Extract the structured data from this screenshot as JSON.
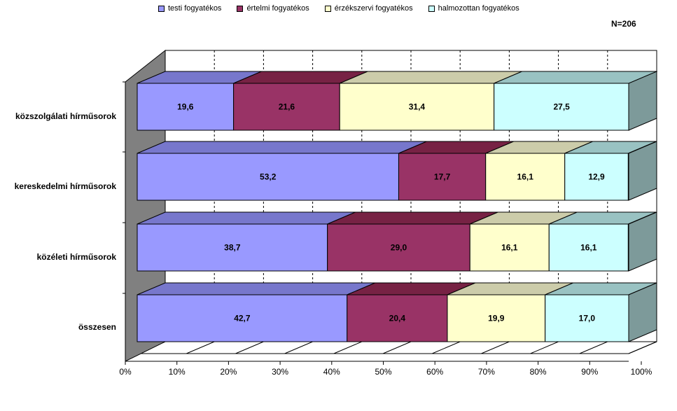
{
  "chart_data": {
    "type": "bar",
    "orientation": "horizontal",
    "stacked": "percent",
    "three_d": true,
    "categories": [
      "közszolgálati hírműsorok",
      "kereskedelmi hírműsorok",
      "közéleti hírműsorok",
      "összesen"
    ],
    "series": [
      {
        "name": "testi fogyatékos",
        "values": [
          19.6,
          53.2,
          38.7,
          42.7
        ],
        "labels": [
          "19,6",
          "53,2",
          "38,7",
          "42,7"
        ]
      },
      {
        "name": "értelmi fogyatékos",
        "values": [
          21.6,
          17.7,
          29.0,
          20.4
        ],
        "labels": [
          "21,6",
          "17,7",
          "29,0",
          "20,4"
        ]
      },
      {
        "name": "érzékszervi fogyatékos",
        "values": [
          31.4,
          16.1,
          16.1,
          19.9
        ],
        "labels": [
          "31,4",
          "16,1",
          "16,1",
          "19,9"
        ]
      },
      {
        "name": "halmozottan fogyatékos",
        "values": [
          27.5,
          12.9,
          16.1,
          17.0
        ],
        "labels": [
          "27,5",
          "12,9",
          "16,1",
          "17,0"
        ]
      }
    ],
    "xlim": [
      0,
      100
    ],
    "xticks": [
      "0%",
      "10%",
      "20%",
      "30%",
      "40%",
      "50%",
      "60%",
      "70%",
      "80%",
      "90%",
      "100%"
    ],
    "annotation": "N=206",
    "legend_position": "top",
    "grid": true,
    "colors": {
      "series_front": [
        "#9999ff",
        "#993366",
        "#ffffcc",
        "#ccffff"
      ],
      "series_top": [
        "#7777cc",
        "#772244",
        "#ccccaa",
        "#99c2c2"
      ],
      "side": "#7d9a9a",
      "wall": "#808080"
    }
  }
}
